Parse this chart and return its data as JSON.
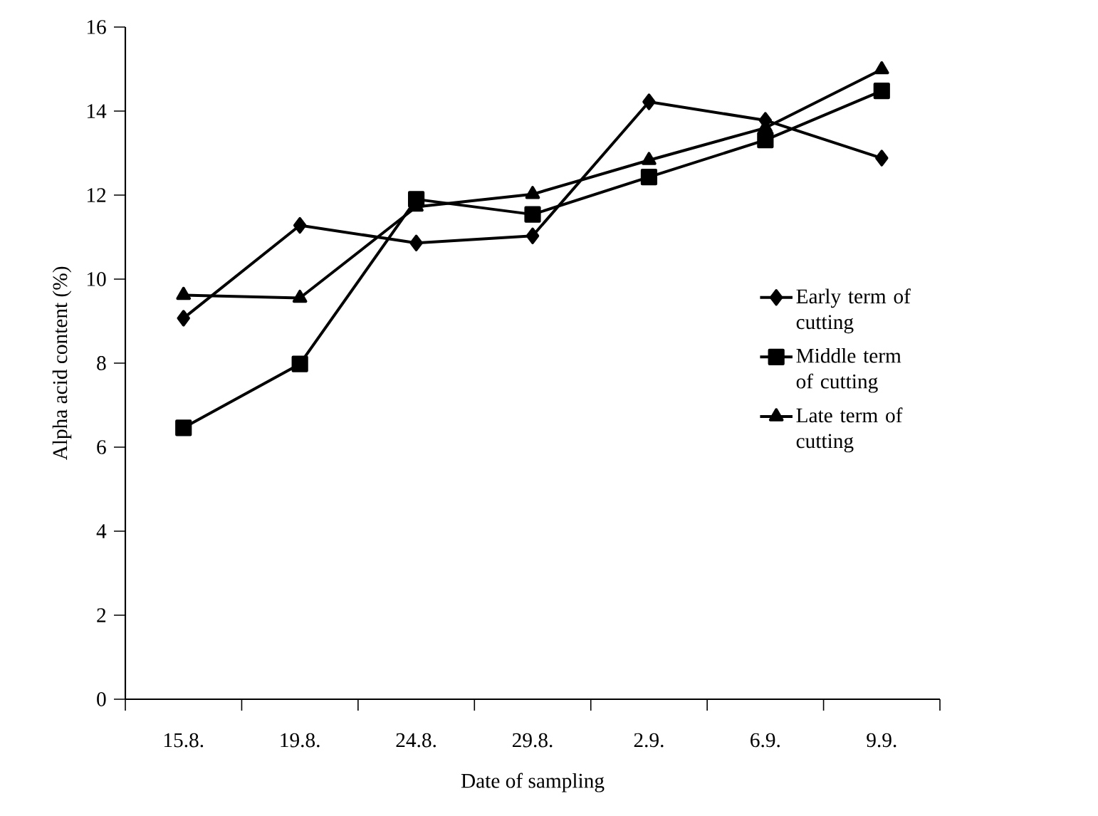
{
  "chart_data": {
    "type": "line",
    "xlabel": "Date of sampling",
    "ylabel": "Alpha acid content (%)",
    "categories": [
      "15.8.",
      "19.8.",
      "24.8.",
      "29.8.",
      "2.9.",
      "6.9.",
      "9.9."
    ],
    "ylim": [
      0,
      16
    ],
    "yticks": [
      0,
      2,
      4,
      6,
      8,
      10,
      12,
      14,
      16
    ],
    "grid": false,
    "legend": "right",
    "line_style": "solid",
    "series": [
      {
        "name": "Early term of cutting",
        "color": "#000000",
        "marker": "diamond",
        "values": [
          9.07,
          11.28,
          10.86,
          11.03,
          14.22,
          13.78,
          12.88
        ]
      },
      {
        "name": "Middle term of cutting",
        "color": "#000000",
        "marker": "square",
        "values": [
          6.46,
          7.98,
          11.9,
          11.54,
          12.43,
          13.31,
          14.48
        ]
      },
      {
        "name": "Late term of cutting",
        "color": "#000000",
        "marker": "triangle",
        "values": [
          9.62,
          9.55,
          11.72,
          12.02,
          12.83,
          13.6,
          14.99
        ]
      }
    ]
  }
}
